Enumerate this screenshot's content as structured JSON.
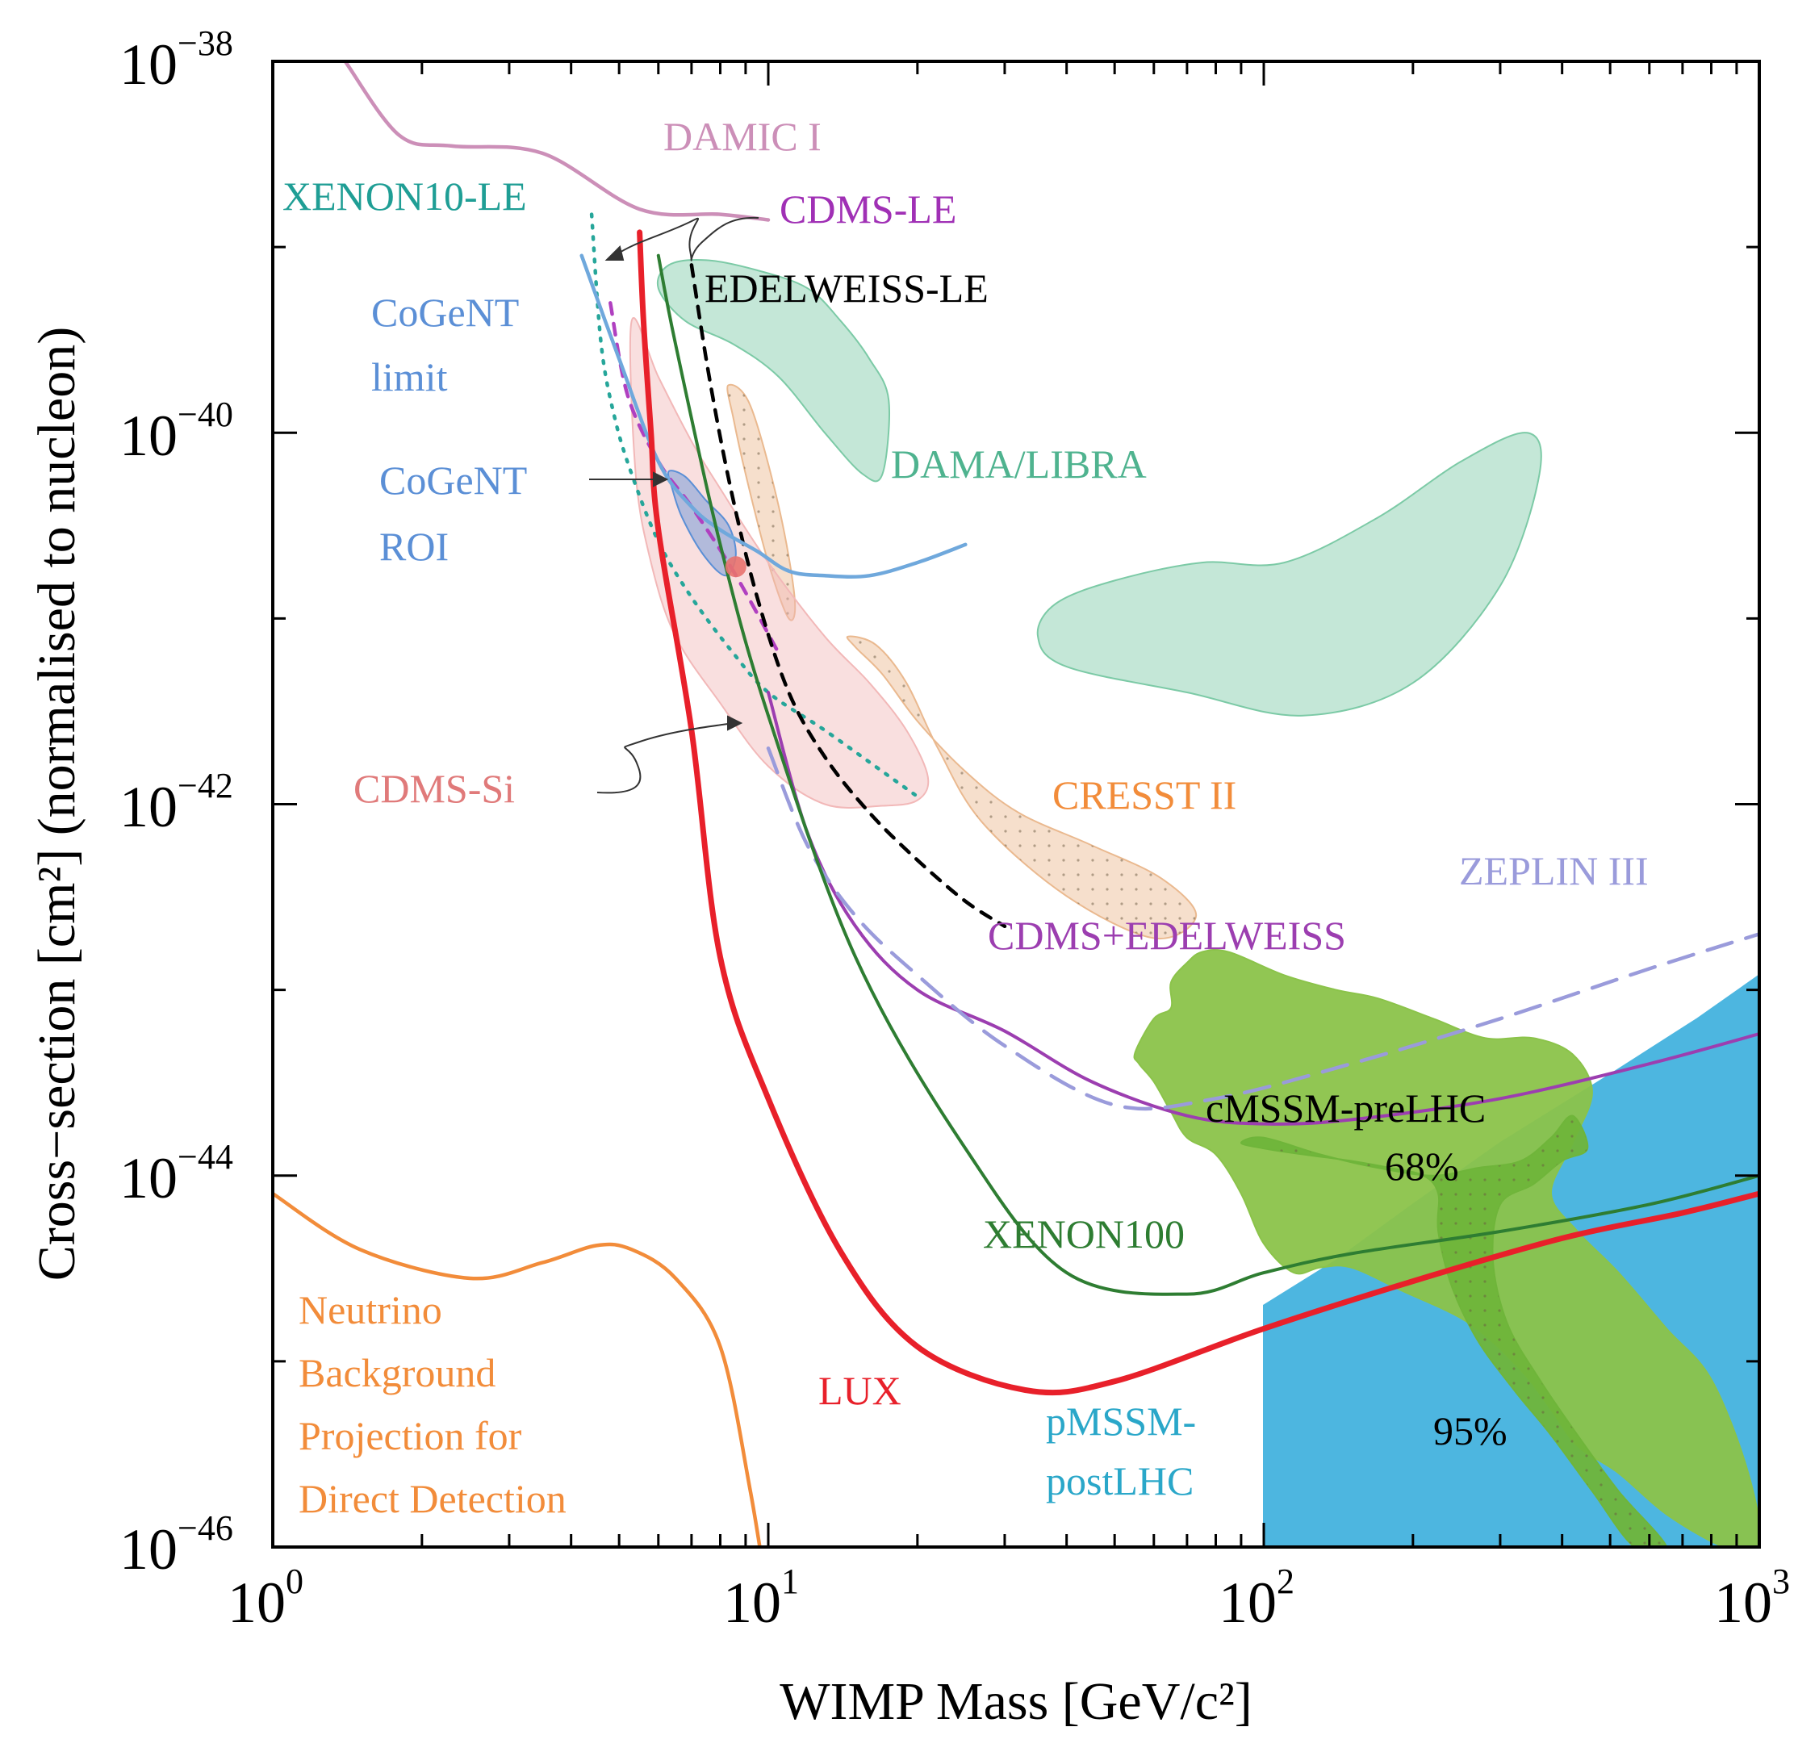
{
  "chart_data": {
    "type": "line",
    "title": "",
    "xlabel": "WIMP Mass [GeV/c²]",
    "ylabel": "Cross−section [cm²] (normalised to nucleon)",
    "xscale": "log",
    "yscale": "log",
    "xlim": [
      1,
      1000
    ],
    "ylim": [
      1e-46,
      1e-38
    ],
    "x_ticks": [
      {
        "value": 1,
        "base": "10",
        "exp": "0"
      },
      {
        "value": 10,
        "base": "10",
        "exp": "1"
      },
      {
        "value": 100,
        "base": "10",
        "exp": "2"
      },
      {
        "value": 1000,
        "base": "10",
        "exp": "3"
      }
    ],
    "y_ticks": [
      {
        "value": 1e-38,
        "base": "10",
        "exp": "−38"
      },
      {
        "value": 1e-40,
        "base": "10",
        "exp": "−40"
      },
      {
        "value": 1e-42,
        "base": "10",
        "exp": "−42"
      },
      {
        "value": 1e-44,
        "base": "10",
        "exp": "−44"
      },
      {
        "value": 1e-46,
        "base": "10",
        "exp": "−46"
      }
    ],
    "series": [
      {
        "name": "DAMIC I",
        "kind": "line",
        "color": "#cc8fb8",
        "x": [
          1.4,
          1.8,
          2.3,
          3.5,
          5.5,
          8,
          10
        ],
        "y": [
          1e-38,
          4e-39,
          3.5e-39,
          3.2e-39,
          1.6e-39,
          1.5e-39,
          1.4e-39
        ]
      },
      {
        "name": "XENON10-LE",
        "kind": "dotted",
        "color": "#26a69a",
        "x": [
          4.4,
          4.6,
          4.9,
          5.3,
          6,
          7,
          8.5,
          10,
          13,
          17,
          20
        ],
        "y": [
          1.5e-39,
          3e-40,
          1.2e-40,
          6e-41,
          2.6e-41,
          1.3e-41,
          6.5e-42,
          4e-42,
          2.5e-42,
          1.5e-42,
          1.1e-42
        ]
      },
      {
        "name": "CDMS-LE",
        "kind": "dashed",
        "color": "#b040c0",
        "x": [
          4.8,
          5.2,
          6,
          7,
          8.5,
          10.5
        ],
        "y": [
          5e-40,
          1.6e-40,
          7e-41,
          4e-41,
          1.8e-41,
          6.5e-42
        ]
      },
      {
        "name": "EDELWEISS-LE",
        "kind": "dashed",
        "color": "#000000",
        "x": [
          7,
          7.6,
          8.4,
          9.5,
          11,
          13,
          16,
          20,
          25,
          30
        ],
        "y": [
          8e-40,
          2e-40,
          5e-41,
          1.3e-41,
          4e-42,
          1.8e-42,
          9e-43,
          5e-43,
          3e-43,
          2.2e-43
        ]
      },
      {
        "name": "CoGeNT limit",
        "kind": "line",
        "color": "#6fa8dc",
        "x": [
          4.2,
          5,
          6,
          7,
          8,
          9.5,
          11,
          13,
          16,
          20,
          25
        ],
        "y": [
          9e-40,
          2.5e-40,
          7e-41,
          4e-41,
          3e-41,
          2.3e-41,
          1.8e-41,
          1.7e-41,
          1.7e-41,
          2e-41,
          2.5e-41
        ]
      },
      {
        "name": "CDMS+EDELWEISS",
        "kind": "line",
        "color": "#9c3eb0",
        "x": [
          10,
          12,
          15,
          20,
          30,
          45,
          70,
          100,
          150,
          300,
          600,
          1000
        ],
        "y": [
          4e-42,
          7e-43,
          2.2e-43,
          1e-43,
          6e-44,
          3.2e-44,
          2.1e-44,
          1.9e-44,
          2e-44,
          2.6e-44,
          4e-44,
          5.8e-44
        ]
      },
      {
        "name": "ZEPLIN III",
        "kind": "dashed",
        "color": "#9a9bdb",
        "x": [
          10,
          12,
          15,
          20,
          30,
          50,
          80,
          150,
          300,
          600,
          1000
        ],
        "y": [
          2e-42,
          6e-43,
          2.5e-43,
          1.2e-43,
          5e-44,
          2.4e-44,
          2.6e-44,
          4e-44,
          7e-44,
          1.3e-43,
          2e-43
        ]
      },
      {
        "name": "XENON100",
        "kind": "line",
        "color": "#2e7d32",
        "x": [
          6,
          6.5,
          8,
          10,
          15,
          25,
          40,
          70,
          100,
          150,
          300,
          600,
          1000
        ],
        "y": [
          9e-40,
          3e-40,
          2.5e-41,
          3e-42,
          1.5e-43,
          1.4e-44,
          3e-45,
          2.3e-45,
          3e-45,
          3.8e-45,
          5e-45,
          7e-45,
          1e-44
        ]
      },
      {
        "name": "LUX",
        "kind": "line",
        "color": "#e8202a",
        "x": [
          5.5,
          5.6,
          5.8,
          6,
          7,
          8,
          10,
          14,
          20,
          33,
          50,
          100,
          200,
          400,
          700,
          1000
        ],
        "y": [
          1.2e-39,
          4e-40,
          1e-40,
          3e-41,
          2.5e-42,
          1.5e-43,
          2.6e-44,
          3.9e-45,
          1.2e-45,
          7e-46,
          7.8e-46,
          1.5e-45,
          2.7e-45,
          4.6e-45,
          6.3e-45,
          8e-45
        ]
      },
      {
        "name": "Neutrino Background Projection for Direct Detection",
        "kind": "line",
        "color": "#f28c3a",
        "x": [
          1,
          1.5,
          2.5,
          3.5,
          4.5,
          5.3,
          6.5,
          8,
          9.2,
          10
        ],
        "y": [
          8e-45,
          4e-45,
          2.8e-45,
          3.4e-45,
          4.2e-45,
          4e-45,
          2.8e-45,
          1.2e-45,
          2e-46,
          5e-47
        ]
      }
    ],
    "regions": [
      {
        "name": "DAMA/LIBRA",
        "color": "#7ccaa6",
        "polygons": [
          {
            "x": [
              6.3,
              7.5,
              9.5,
              12,
              14,
              16,
              17.5,
              17,
              15.5,
              13,
              10.5,
              8.5,
              6.8,
              6
            ],
            "y": [
              8e-40,
              8.5e-40,
              7.5e-40,
              6e-40,
              4e-40,
              2.5e-40,
              1.5e-40,
              6e-41,
              6e-41,
              1e-40,
              2e-40,
              3e-40,
              4e-40,
              6e-40
            ]
          },
          {
            "x": [
              40,
              70,
              120,
              200,
              300,
              360,
              340,
              250,
              170,
              110,
              75,
              50,
              38,
              35
            ],
            "y": [
              5.5e-42,
              4e-42,
              3e-42,
              4.5e-42,
              1.5e-41,
              6e-41,
              1e-40,
              7e-41,
              3.5e-41,
              2e-41,
              2e-41,
              1.6e-41,
              1.2e-41,
              8e-42
            ]
          }
        ]
      },
      {
        "name": "CRESST II",
        "color": "#eab98f",
        "polygons": [
          {
            "x": [
              8.3,
              9.2,
              10.5,
              11.3,
              11,
              10,
              9,
              8.5
            ],
            "y": [
              1.8e-40,
              1.4e-40,
              4e-41,
              1.3e-41,
              1e-41,
              2e-41,
              6e-41,
              1.2e-40
            ]
          },
          {
            "x": [
              16.5,
              19,
              22,
              27,
              40,
              60,
              73,
              62,
              45,
              32,
              25,
              20,
              17,
              15,
              14.5
            ],
            "y": [
              7.2e-42,
              4.5e-42,
              2e-42,
              8e-43,
              3.2e-43,
              1.9e-43,
              2.5e-43,
              4e-43,
              6e-43,
              9e-43,
              1.5e-42,
              2.8e-42,
              5e-42,
              7e-42,
              8e-42
            ]
          }
        ]
      },
      {
        "name": "CDMS-Si",
        "color": "#f2b8b8",
        "polygons": [
          {
            "x": [
              5.3,
              6,
              7,
              8,
              10,
              13,
              16,
              19,
              21,
              20,
              17,
              13,
              10,
              8,
              6.5,
              5.8,
              5.4
            ],
            "y": [
              4e-40,
              2e-40,
              9e-41,
              5e-41,
              2e-41,
              8e-42,
              4.5e-42,
              2.5e-42,
              1.4e-42,
              1.05e-42,
              9.8e-43,
              1e-42,
              1.6e-42,
              3.5e-42,
              8e-42,
              2e-41,
              6e-41
            ]
          }
        ]
      },
      {
        "name": "CoGeNT ROI",
        "color": "#5b8fd6",
        "polygons": [
          {
            "x": [
              6.3,
              6.8,
              7.5,
              8.3,
              8.6,
              8.2,
              7.4,
              6.7,
              6.4
            ],
            "y": [
              6.2e-41,
              5.8e-41,
              4.3e-41,
              3.2e-41,
              2.2e-41,
              1.7e-41,
              2.2e-41,
              3.5e-41,
              5e-41
            ]
          }
        ]
      },
      {
        "name": "pMSSM-postLHC",
        "color": "#4db6e0",
        "polygons": [
          {
            "x": [
              100,
              140,
              200,
              300,
              500,
              750,
              1000,
              1000,
              100
            ],
            "y": [
              2e-45,
              3.5e-45,
              7e-45,
              1.5e-44,
              3.5e-44,
              7e-44,
              1.2e-43,
              1e-46,
              1e-46
            ]
          }
        ]
      },
      {
        "name": "cMSSM-preLHC 95%",
        "color": "#8bc34a",
        "polygons": [
          {
            "x": [
              85,
              110,
              140,
              170,
              220,
              280,
              350,
              420,
              460,
              420,
              380,
              430,
              520,
              650,
              800,
              950,
              1000,
              850,
              650,
              520,
              430,
              380,
              330,
              260,
              190,
              150,
              130,
              115,
              100,
              90,
              80,
              70,
              65,
              60,
              56,
              55,
              60,
              65,
              65,
              70,
              75
            ],
            "y": [
              1.6e-43,
              1.2e-43,
              1e-43,
              9e-44,
              7e-44,
              5.5e-44,
              5.5e-44,
              4.5e-44,
              2.8e-44,
              1.5e-44,
              8e-45,
              5e-45,
              3e-45,
              1.5e-45,
              8e-46,
              2.5e-46,
              1e-46,
              1e-46,
              1.5e-46,
              2.5e-46,
              3.5e-46,
              5.5e-46,
              9e-46,
              1.6e-45,
              2.4e-45,
              3.2e-45,
              3.2e-45,
              3e-45,
              4.3e-45,
              8e-45,
              1.3e-44,
              1.6e-44,
              2.2e-44,
              3.2e-44,
              4e-44,
              4.6e-44,
              7e-44,
              8e-44,
              1.1e-43,
              1.4e-43,
              1.6e-43
            ]
          }
        ]
      },
      {
        "name": "cMSSM-preLHC 68%",
        "color": "#6fb53a",
        "polygons": [
          {
            "x": [
              100,
              130,
              170,
              220,
              270,
              330,
              380,
              420,
              450,
              400,
              350,
              300,
              290,
              310,
              360,
              430,
              520,
              650,
              560,
              460,
              380,
              320,
              270,
              240,
              225,
              225,
              210,
              180,
              150,
              120,
              100,
              90
            ],
            "y": [
              1.6e-44,
              1.3e-44,
              1.1e-44,
              1e-44,
              1.1e-44,
              1.2e-44,
              1.6e-44,
              2.1e-44,
              1.4e-44,
              1.2e-44,
              9e-45,
              7e-45,
              3.5e-45,
              1.6e-45,
              8e-46,
              4e-46,
              2e-46,
              1e-46,
              1e-46,
              2e-46,
              4e-46,
              7e-46,
              1.3e-45,
              2.5e-45,
              5e-45,
              8e-45,
              1e-44,
              1.1e-44,
              1.2e-44,
              1.3e-44,
              1.4e-44,
              1.5e-44
            ]
          }
        ]
      }
    ],
    "labels": [
      {
        "text": "DAMIC I",
        "color": "#cc8fb8"
      },
      {
        "text": "XENON10-LE",
        "color": "#1f9e95"
      },
      {
        "text": "CDMS-LE",
        "color": "#a030b5"
      },
      {
        "text": "EDELWEISS-LE",
        "color": "#000000"
      },
      {
        "text": "CoGeNT",
        "color": "#5b8fd6"
      },
      {
        "text": "limit",
        "color": "#5b8fd6"
      },
      {
        "text": "CoGeNT",
        "color": "#5b8fd6"
      },
      {
        "text": "ROI",
        "color": "#5b8fd6"
      },
      {
        "text": "DAMA/LIBRA",
        "color": "#4fb38f"
      },
      {
        "text": "CDMS-Si",
        "color": "#e07a7a"
      },
      {
        "text": "CRESST II",
        "color": "#f28c3a"
      },
      {
        "text": "ZEPLIN III",
        "color": "#9a9bdb"
      },
      {
        "text": "CDMS+EDELWEISS",
        "color": "#9c3eb0"
      },
      {
        "text": "cMSSM-preLHC",
        "color": "#000000"
      },
      {
        "text": "68%",
        "color": "#000000"
      },
      {
        "text": "XENON100",
        "color": "#2e7d32"
      },
      {
        "text": "95%",
        "color": "#000000"
      },
      {
        "text": "LUX",
        "color": "#e8202a"
      },
      {
        "text": "pMSSM-",
        "color": "#2aa7c9"
      },
      {
        "text": "postLHC",
        "color": "#2aa7c9"
      },
      {
        "text": "Neutrino",
        "color": "#f28c3a"
      },
      {
        "text": "Background",
        "color": "#f28c3a"
      },
      {
        "text": "Projection for",
        "color": "#f28c3a"
      },
      {
        "text": "Direct Detection",
        "color": "#f28c3a"
      }
    ],
    "marker": {
      "name": "CDMS-Si best fit",
      "x": 8.6,
      "y": 1.9e-41,
      "color": "#e8726e"
    },
    "grid": false,
    "legend": "none"
  }
}
